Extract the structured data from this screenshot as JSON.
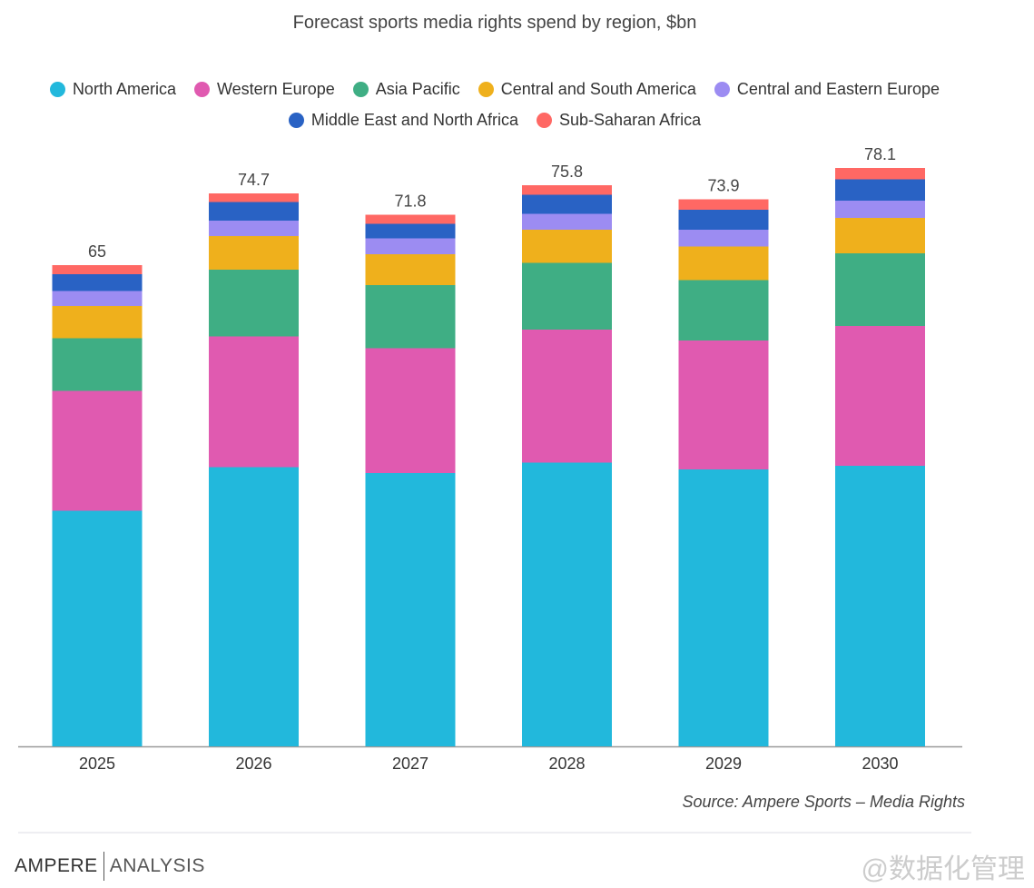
{
  "chart_data": {
    "type": "bar",
    "stacked": true,
    "title": "Forecast sports media rights spend by region, $bn",
    "categories": [
      "2025",
      "2026",
      "2027",
      "2028",
      "2029",
      "2030"
    ],
    "totals": [
      "65",
      "74.7",
      "71.8",
      "75.8",
      "73.9",
      "78.1"
    ],
    "legend_position": "top",
    "grid": false,
    "ylim": [
      0,
      80
    ],
    "series": [
      {
        "name": "North America",
        "color": "#22b8dc",
        "values": [
          31.8,
          37.7,
          36.9,
          38.3,
          37.4,
          37.9
        ]
      },
      {
        "name": "Western Europe",
        "color": "#e05ab0",
        "values": [
          16.2,
          17.7,
          16.9,
          18.0,
          17.4,
          18.9
        ]
      },
      {
        "name": "Asia Pacific",
        "color": "#3fae84",
        "values": [
          7.1,
          9.0,
          8.5,
          9.0,
          8.2,
          9.8
        ]
      },
      {
        "name": "Central and South America",
        "color": "#efb01c",
        "values": [
          4.4,
          4.5,
          4.2,
          4.5,
          4.5,
          4.8
        ]
      },
      {
        "name": "Central and Eastern Europe",
        "color": "#9c8cf2",
        "values": [
          2.0,
          2.1,
          2.1,
          2.1,
          2.3,
          2.3
        ]
      },
      {
        "name": "Middle East and North Africa",
        "color": "#2962c4",
        "values": [
          2.3,
          2.5,
          2.0,
          2.6,
          2.7,
          2.9
        ]
      },
      {
        "name": "Sub-Saharan Africa",
        "color": "#ff6864",
        "values": [
          1.2,
          1.2,
          1.2,
          1.3,
          1.4,
          1.5
        ]
      }
    ]
  },
  "source": "Source:  Ampere Sports – Media Rights",
  "logo": {
    "part1": "AMPERE",
    "part2": "ANALYSIS"
  },
  "watermark": "@数据化管理"
}
